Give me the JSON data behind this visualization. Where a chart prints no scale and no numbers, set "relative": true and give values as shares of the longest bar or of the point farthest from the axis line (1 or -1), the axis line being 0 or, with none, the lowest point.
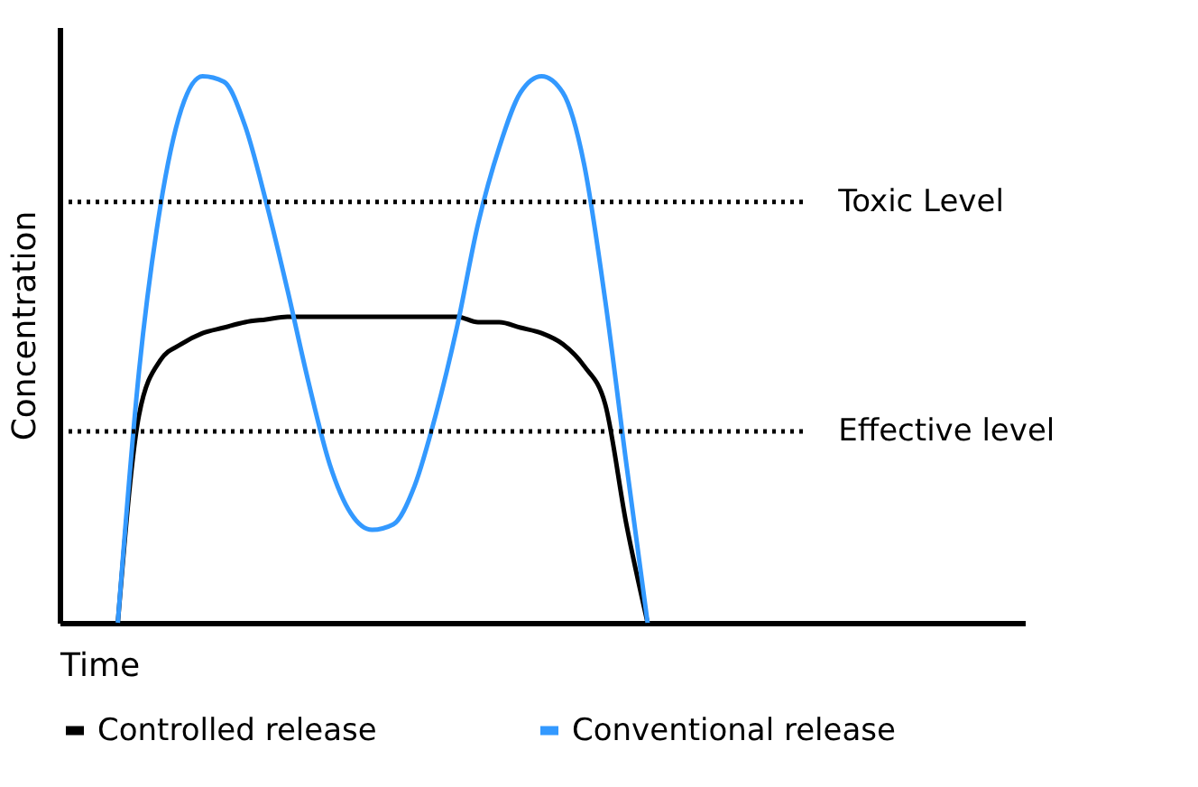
{
  "chart_data": {
    "type": "line",
    "relative": true,
    "xlabel": "Time",
    "ylabel": "Concentration",
    "categories": [
      null,
      null,
      null,
      null,
      null,
      null,
      null,
      null,
      null,
      null,
      null,
      null,
      null,
      null,
      null,
      null,
      null,
      null,
      null,
      null,
      null,
      null,
      null,
      null,
      null,
      null
    ],
    "series": [
      {
        "name": "Controlled release",
        "color": "#000000",
        "values": [
          0,
          0.38,
          0.48,
          0.51,
          0.53,
          0.54,
          0.55,
          0.555,
          0.56,
          0.56,
          0.56,
          0.56,
          0.56,
          0.56,
          0.56,
          0.56,
          0.56,
          0.55,
          0.55,
          0.54,
          0.53,
          0.51,
          0.47,
          0.4,
          0.18,
          0
        ]
      },
      {
        "name": "Conventional release",
        "color": "#3399ff",
        "values": [
          0,
          0.46,
          0.76,
          0.94,
          1.0,
          0.99,
          0.91,
          0.77,
          0.61,
          0.44,
          0.29,
          0.2,
          0.17,
          0.18,
          0.25,
          0.38,
          0.54,
          0.73,
          0.87,
          0.97,
          1.0,
          0.97,
          0.84,
          0.59,
          0.29,
          0
        ]
      }
    ],
    "ref_lines": [
      {
        "axis": "y",
        "value": 0.77,
        "label": "Toxic Level",
        "line_style": "dotted",
        "color": "#000000"
      },
      {
        "axis": "y",
        "value": 0.35,
        "label": "Effective level",
        "line_style": "dotted",
        "color": "#000000"
      }
    ],
    "grid": false,
    "legend": "bottom",
    "tick_labels": false,
    "marker": "none",
    "line_style": "solid"
  }
}
